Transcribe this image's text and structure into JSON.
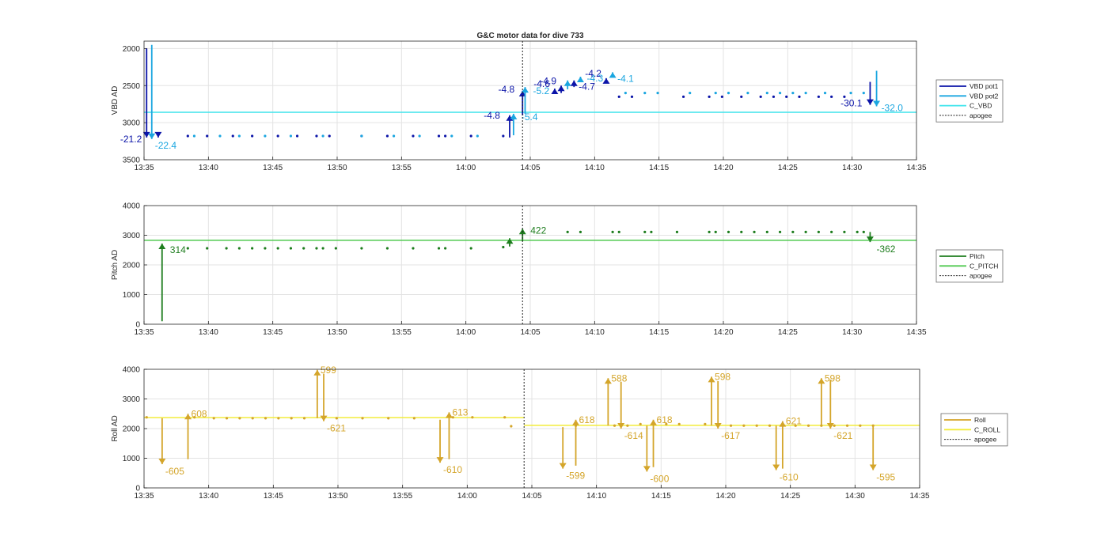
{
  "figure": {
    "title": "G&C motor data for dive 733"
  },
  "colors": {
    "vbd_pot1": "#0b14a8",
    "vbd_pot2": "#1aa6e0",
    "c_vbd": "#3ee4ec",
    "pitch": "#1e7d1e",
    "c_pitch": "#52c952",
    "roll": "#d4a52a",
    "c_roll": "#f2ec3a",
    "apogee": "#222222",
    "grid": "#e3e3e3",
    "axis": "#262626"
  },
  "chart_data": [
    {
      "type": "scatter",
      "ylabel": "VBD AD",
      "ylim": [
        3500,
        1900
      ],
      "yticks": [
        2000,
        2500,
        3000,
        3500
      ],
      "y_reversed": true,
      "xlim": [
        "13:35",
        "14:35"
      ],
      "xticks": [
        "13:35",
        "13:40",
        "13:45",
        "13:50",
        "13:55",
        "14:00",
        "14:05",
        "14:10",
        "14:15",
        "14:20",
        "14:25",
        "14:30",
        "14:35"
      ],
      "grid": true,
      "legend_location": "outside-right",
      "legend": [
        "VBD pot1",
        "VBD pot2",
        "C_VBD",
        "apogee"
      ],
      "apogee_x": "14:04.4",
      "reference_lines": [
        {
          "name": "C_VBD",
          "y": 2860
        }
      ],
      "series": [
        {
          "name": "VBD pot1",
          "x": [
            "13:38.4",
            "13:39.9",
            "13:41.9",
            "13:43.4",
            "13:45.4",
            "13:46.9",
            "13:48.4",
            "13:49.4",
            "13:51.9",
            "13:53.9",
            "13:55.9",
            "13:57.9",
            "13:58.4",
            "14:00.4",
            "14:02.9",
            "14:11.9",
            "14:12.9",
            "14:16.9",
            "14:18.9",
            "14:19.9",
            "14:21.4",
            "14:22.9",
            "14:23.9",
            "14:24.9",
            "14:25.9",
            "14:27.4",
            "14:28.4",
            "14:29.4"
          ],
          "y": [
            3180,
            3180,
            3180,
            3180,
            3180,
            3180,
            3180,
            3180,
            3180,
            3180,
            3180,
            3180,
            3180,
            3180,
            3180,
            2650,
            2650,
            2650,
            2650,
            2650,
            2650,
            2650,
            2650,
            2650,
            2650,
            2650,
            2650,
            2650
          ]
        },
        {
          "name": "VBD pot2",
          "x": [
            "13:38.9",
            "13:40.9",
            "13:42.4",
            "13:44.4",
            "13:46.4",
            "13:48.9",
            "13:51.9",
            "13:54.4",
            "13:56.4",
            "13:58.9",
            "14:00.9",
            "14:12.4",
            "14:13.9",
            "14:14.9",
            "14:17.4",
            "14:19.4",
            "14:20.4",
            "14:21.9",
            "14:23.4",
            "14:24.4",
            "14:25.4",
            "14:26.4",
            "14:27.9",
            "14:29.9",
            "14:30.9"
          ],
          "y": [
            3180,
            3180,
            3180,
            3180,
            3180,
            3180,
            3180,
            3180,
            3180,
            3180,
            3180,
            2600,
            2600,
            2600,
            2600,
            2600,
            2600,
            2600,
            2600,
            2600,
            2600,
            2600,
            2600,
            2600,
            2600
          ]
        }
      ],
      "annotations": [
        {
          "text": "-21.2",
          "series": "VBD pot1",
          "x": "13:35.2",
          "from": 2000,
          "to": 3200
        },
        {
          "text": "-22.4",
          "series": "VBD pot2",
          "x": "13:35.6",
          "from": 1950,
          "to": 3220
        },
        {
          "text": "",
          "series": "VBD pot1",
          "x": "13:36.1",
          "from": 3150,
          "to": 3200
        },
        {
          "text": "-4.8",
          "series": "VBD pot1",
          "x": "14:03.4",
          "from": 3200,
          "to": 2900
        },
        {
          "text": "-5.4",
          "series": "VBD pot2",
          "x": "14:03.7",
          "from": 3170,
          "to": 2880
        },
        {
          "text": "-4.8",
          "series": "VBD pot1",
          "x": "14:04.4",
          "from": 2900,
          "to": 2570
        },
        {
          "text": "-5.2",
          "series": "VBD pot2",
          "x": "14:04.6",
          "from": 2880,
          "to": 2520
        },
        {
          "text": "-4.6",
          "series": "VBD pot1",
          "x": "14:06.9",
          "from": 2600,
          "to": 2540
        },
        {
          "text": "-4.9",
          "series": "VBD pot1",
          "x": "14:07.4",
          "from": 2600,
          "to": 2500
        },
        {
          "text": "",
          "series": "VBD pot2",
          "x": "14:07.9",
          "from": 2550,
          "to": 2430
        },
        {
          "text": "-4.7",
          "series": "VBD pot1",
          "x": "14:08.4",
          "from": 2520,
          "to": 2430
        },
        {
          "text": "-4.3",
          "series": "VBD pot2",
          "x": "14:08.9",
          "from": 2450,
          "to": 2380
        },
        {
          "text": "-4.2",
          "series": "VBD pot1",
          "x": "14:10.9",
          "from": 2450,
          "to": 2400
        },
        {
          "text": "-4.1",
          "series": "VBD pot2",
          "x": "14:11.4",
          "from": 2370,
          "to": 2320
        },
        {
          "text": "-30.1",
          "series": "VBD pot1",
          "x": "14:31.4",
          "from": 2450,
          "to": 2760
        },
        {
          "text": "-32.0",
          "series": "VBD pot2",
          "x": "14:31.9",
          "from": 2300,
          "to": 2780
        }
      ],
      "label_texts": [
        "-21.2",
        "-22.4",
        "-4.8",
        "-5.4",
        "-4.8",
        "-5.2",
        "-4.6",
        "-4.9",
        "-4.7",
        "-4.3",
        "-4.2",
        "-4.1",
        "-30.1",
        "-32.0"
      ]
    },
    {
      "type": "scatter",
      "ylabel": "Pitch AD",
      "ylim": [
        0,
        4000
      ],
      "yticks": [
        0,
        1000,
        2000,
        3000,
        4000
      ],
      "xlim": [
        "13:35",
        "14:35"
      ],
      "xticks": [
        "13:35",
        "13:40",
        "13:45",
        "13:50",
        "13:55",
        "14:00",
        "14:05",
        "14:10",
        "14:15",
        "14:20",
        "14:25",
        "14:30",
        "14:35"
      ],
      "grid": true,
      "legend_location": "outside-right",
      "legend": [
        "Pitch",
        "C_PITCH",
        "apogee"
      ],
      "apogee_x": "14:04.4",
      "reference_lines": [
        {
          "name": "C_PITCH",
          "y": 2830
        }
      ],
      "series": [
        {
          "name": "Pitch",
          "x": [
            "13:38.4",
            "13:39.9",
            "13:41.4",
            "13:42.4",
            "13:43.4",
            "13:44.4",
            "13:45.4",
            "13:46.4",
            "13:47.4",
            "13:48.4",
            "13:48.9",
            "13:49.9",
            "13:51.9",
            "13:53.9",
            "13:55.9",
            "13:57.9",
            "13:58.4",
            "14:00.4",
            "14:02.9",
            "14:07.9",
            "14:08.9",
            "14:11.4",
            "14:11.9",
            "14:13.9",
            "14:14.4",
            "14:16.4",
            "14:18.9",
            "14:19.4",
            "14:20.4",
            "14:21.4",
            "14:22.4",
            "14:23.4",
            "14:24.4",
            "14:25.4",
            "14:26.4",
            "14:27.4",
            "14:28.4",
            "14:29.4",
            "14:30.4",
            "14:30.9"
          ],
          "y": [
            2560,
            2560,
            2560,
            2560,
            2560,
            2560,
            2560,
            2560,
            2560,
            2560,
            2560,
            2560,
            2560,
            2560,
            2560,
            2560,
            2560,
            2560,
            2600,
            3110,
            3110,
            3110,
            3110,
            3110,
            3110,
            3110,
            3110,
            3110,
            3110,
            3110,
            3110,
            3110,
            3110,
            3110,
            3110,
            3110,
            3110,
            3110,
            3110,
            3110
          ]
        }
      ],
      "annotations": [
        {
          "text": "314",
          "series": "Pitch",
          "x": "13:36.4",
          "from": 100,
          "to": 2720
        },
        {
          "text": "",
          "series": "Pitch",
          "x": "14:03.4",
          "from": 2620,
          "to": 2900
        },
        {
          "text": "422",
          "series": "Pitch",
          "x": "14:04.4",
          "from": 2800,
          "to": 3220
        },
        {
          "text": "-362",
          "series": "Pitch",
          "x": "14:31.4",
          "from": 3110,
          "to": 2770
        }
      ],
      "label_texts": [
        "314",
        "422",
        "-362"
      ]
    },
    {
      "type": "scatter",
      "ylabel": "Roll AD",
      "ylim": [
        0,
        4000
      ],
      "yticks": [
        0,
        1000,
        2000,
        3000,
        4000
      ],
      "xlim": [
        "13:35",
        "14:35"
      ],
      "xticks": [
        "13:35",
        "13:40",
        "13:45",
        "13:50",
        "13:55",
        "14:00",
        "14:05",
        "14:10",
        "14:15",
        "14:20",
        "14:25",
        "14:30",
        "14:35"
      ],
      "grid": true,
      "legend_location": "outside-right",
      "legend": [
        "Roll",
        "C_ROLL",
        "apogee"
      ],
      "apogee_x": "14:04.4",
      "reference_lines": [
        {
          "name": "C_ROLL",
          "y": 2370,
          "x_to": "14:04.4"
        },
        {
          "name": "C_ROLL",
          "y": 2110,
          "x_from": "14:04.4"
        }
      ],
      "series": [
        {
          "name": "Roll",
          "x": [
            "13:35.2",
            "13:38.9",
            "13:40.4",
            "13:41.4",
            "13:42.4",
            "13:43.4",
            "13:44.4",
            "13:45.4",
            "13:46.4",
            "13:47.4",
            "13:48.9",
            "13:49.9",
            "13:51.9",
            "13:53.9",
            "13:55.9",
            "13:58.9",
            "14:00.4",
            "14:02.9",
            "14:03.4",
            "14:08.4",
            "14:11.4",
            "14:12.4",
            "14:13.4",
            "14:14.4",
            "14:15.4",
            "14:16.4",
            "14:18.4",
            "14:19.4",
            "14:20.4",
            "14:21.4",
            "14:22.4",
            "14:23.4",
            "14:24.4",
            "14:25.4",
            "14:26.4",
            "14:27.4",
            "14:28.4",
            "14:29.4",
            "14:30.4",
            "14:31.4"
          ],
          "y": [
            2380,
            2380,
            2350,
            2350,
            2350,
            2350,
            2350,
            2350,
            2350,
            2350,
            2350,
            2350,
            2350,
            2350,
            2350,
            2380,
            2380,
            2380,
            2080,
            2100,
            2100,
            2100,
            2150,
            2150,
            2150,
            2150,
            2150,
            2150,
            2100,
            2100,
            2100,
            2100,
            2100,
            2100,
            2100,
            2100,
            2100,
            2100,
            2100,
            2100
          ]
        }
      ],
      "annotations": [
        {
          "text": "-605",
          "series": "Roll",
          "x": "13:36.4",
          "from": 2350,
          "to": 800
        },
        {
          "text": "608",
          "series": "Roll",
          "x": "13:38.4",
          "from": 970,
          "to": 2500
        },
        {
          "text": "599",
          "series": "Roll",
          "x": "13:48.4",
          "from": 2350,
          "to": 3980
        },
        {
          "text": "-621",
          "series": "Roll",
          "x": "13:48.9",
          "from": 3850,
          "to": 2250
        },
        {
          "text": "-610",
          "series": "Roll",
          "x": "13:57.9",
          "from": 2300,
          "to": 850
        },
        {
          "text": "613",
          "series": "Roll",
          "x": "13:58.6",
          "from": 970,
          "to": 2550
        },
        {
          "text": "-599",
          "series": "Roll",
          "x": "14:07.4",
          "from": 2050,
          "to": 650
        },
        {
          "text": "618",
          "series": "Roll",
          "x": "14:08.4",
          "from": 750,
          "to": 2300
        },
        {
          "text": "588",
          "series": "Roll",
          "x": "14:10.9",
          "from": 2100,
          "to": 3700
        },
        {
          "text": "-614",
          "series": "Roll",
          "x": "14:11.9",
          "from": 3580,
          "to": 2000
        },
        {
          "text": "-600",
          "series": "Roll",
          "x": "14:13.9",
          "from": 2100,
          "to": 550
        },
        {
          "text": "618",
          "series": "Roll",
          "x": "14:14.4",
          "from": 700,
          "to": 2300
        },
        {
          "text": "598",
          "series": "Roll",
          "x": "14:18.9",
          "from": 2100,
          "to": 3750
        },
        {
          "text": "-617",
          "series": "Roll",
          "x": "14:19.4",
          "from": 3600,
          "to": 2000
        },
        {
          "text": "-610",
          "series": "Roll",
          "x": "14:23.9",
          "from": 2100,
          "to": 600
        },
        {
          "text": "621",
          "series": "Roll",
          "x": "14:24.4",
          "from": 650,
          "to": 2250
        },
        {
          "text": "598",
          "series": "Roll",
          "x": "14:27.4",
          "from": 2100,
          "to": 3700
        },
        {
          "text": "-621",
          "series": "Roll",
          "x": "14:28.1",
          "from": 3650,
          "to": 2000
        },
        {
          "text": "-595",
          "series": "Roll",
          "x": "14:31.4",
          "from": 2100,
          "to": 600
        }
      ],
      "label_texts": [
        "-605",
        "608",
        "599",
        "-621",
        "-610",
        "613",
        "-599",
        "618",
        "588",
        "-614",
        "-600",
        "618",
        "598",
        "-617",
        "-610",
        "621",
        "598",
        "-621",
        "-595"
      ]
    }
  ]
}
